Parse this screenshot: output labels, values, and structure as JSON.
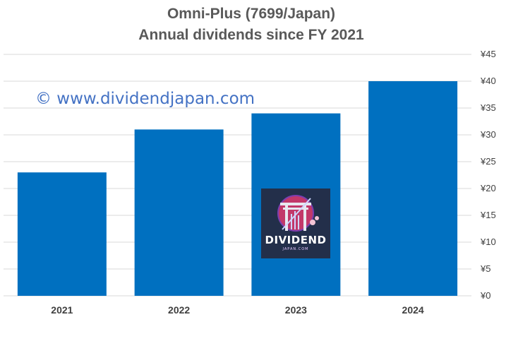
{
  "chart_data": {
    "type": "bar",
    "title": "Omni-Plus (7699/Japan)",
    "subtitle": "Annual dividends since FY 2021",
    "categories": [
      "2021",
      "2022",
      "2023",
      "2024"
    ],
    "values": [
      23,
      31,
      34,
      40
    ],
    "ylim": [
      0,
      45
    ],
    "yticks": [
      0,
      5,
      10,
      15,
      20,
      25,
      30,
      35,
      40,
      45
    ],
    "y_tick_prefix": "¥",
    "y_axis_side": "right",
    "grid": true,
    "legend": "none",
    "bar_color": "#0070C0",
    "grid_color": "#D9D9D9"
  },
  "watermark": "© www.dividendjapan.com",
  "logo": {
    "word": "DIVIDEND",
    "sub": "JAPAN.COM"
  }
}
